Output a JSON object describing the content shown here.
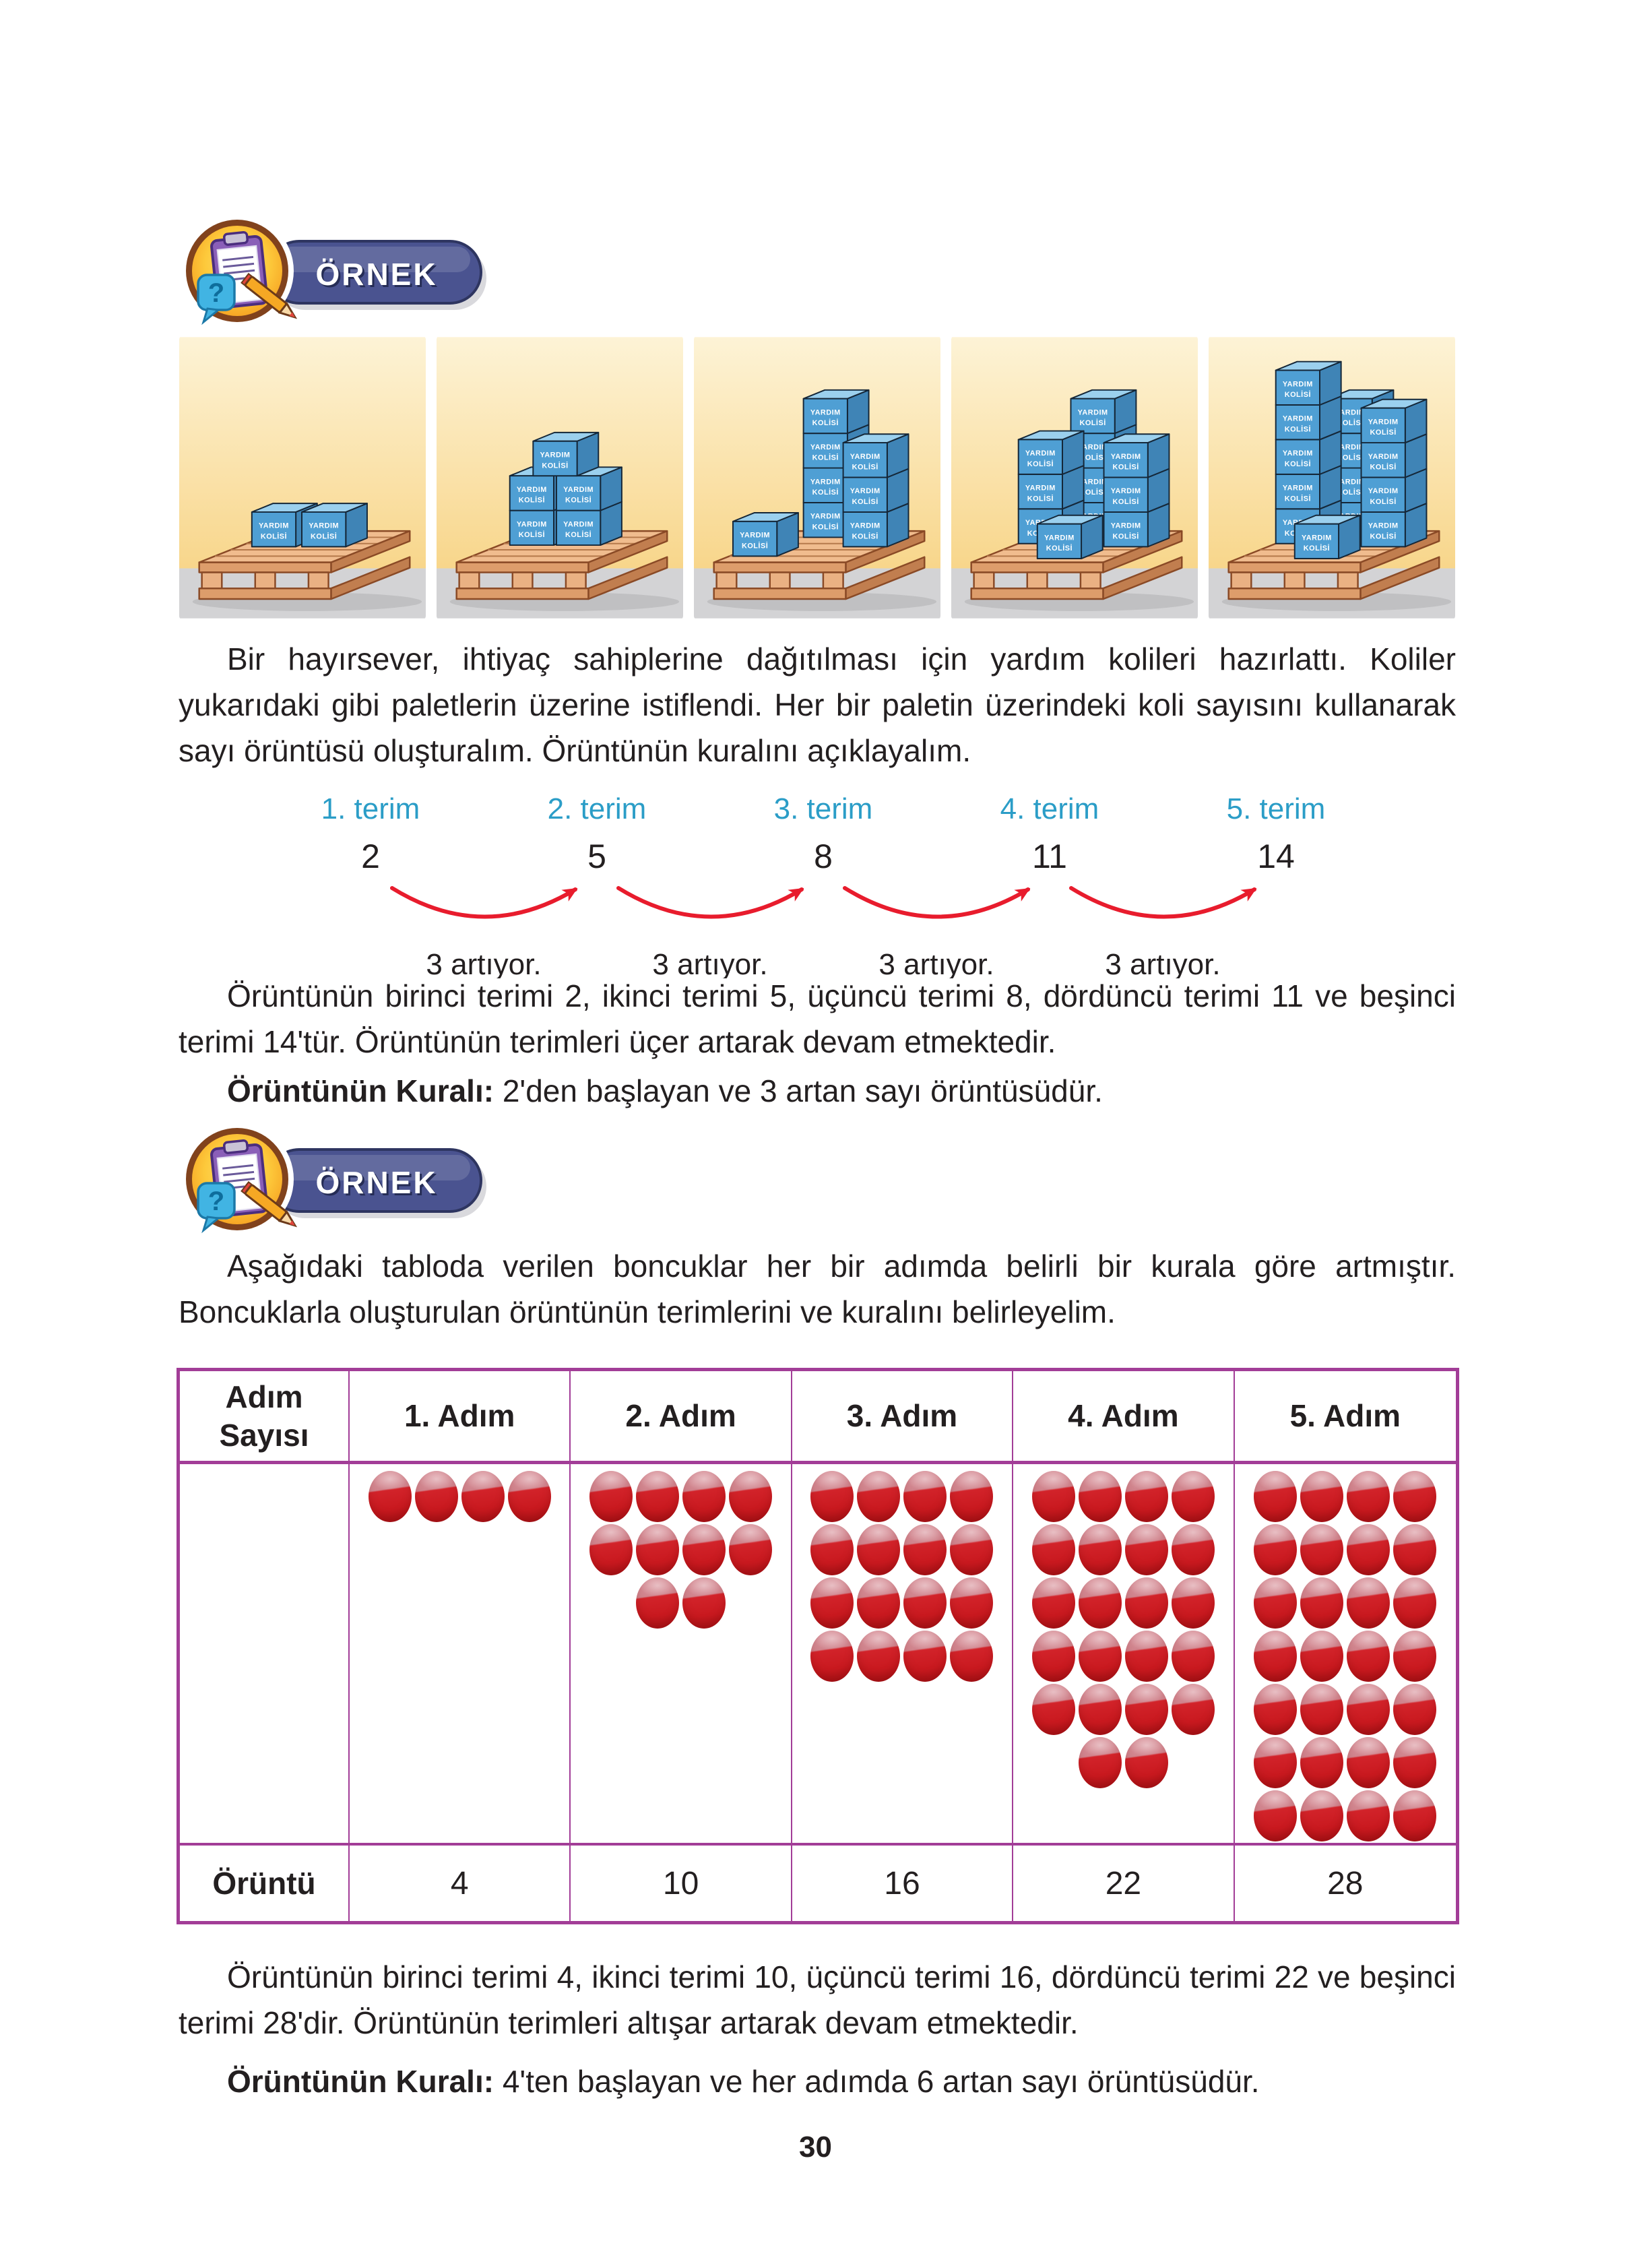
{
  "page": {
    "number": "30"
  },
  "colors": {
    "text": "#231f20",
    "term_label_cyan": "#2b9dc7",
    "arrow_red": "#e81c2d",
    "table_border_purple": "#a23d97",
    "badge_pill_blue": "#4a5390",
    "box_blue": "#4f9fd4",
    "bead_red": "#cc1a22",
    "pallet_wood": "#eab183"
  },
  "example1": {
    "badge_label": "ÖRNEK",
    "badge_icon": "clipboard-pencil-question-icon",
    "pallets": {
      "box_label_line1": "YARDIM",
      "box_label_line2": "KOLİSİ",
      "counts": [
        2,
        5,
        8,
        11,
        14
      ],
      "stacks": [
        [
          {
            "u": 20,
            "f": 0.5,
            "h": 1
          },
          {
            "u": 95,
            "f": 0.5,
            "h": 1
          }
        ],
        [
          {
            "u": 15,
            "f": 0.55,
            "h": 2
          },
          {
            "u": 85,
            "f": 0.55,
            "h": 2
          },
          {
            "u": 50,
            "f": 0.55,
            "h": 1,
            "lift": 2
          }
        ],
        [
          {
            "u": 40,
            "f": 0.8,
            "h": 4
          },
          {
            "u": 135,
            "f": 0.5,
            "h": 3
          },
          {
            "u": 5,
            "f": 0.2,
            "h": 1
          }
        ],
        [
          {
            "u": 55,
            "f": 0.8,
            "h": 4
          },
          {
            "u": 0,
            "f": 0.6,
            "h": 3
          },
          {
            "u": 140,
            "f": 0.5,
            "h": 3
          },
          {
            "u": 85,
            "f": 0.12,
            "h": 1
          }
        ],
        [
          {
            "u": 55,
            "f": 0.8,
            "h": 4
          },
          {
            "u": 0,
            "f": 0.6,
            "h": 5
          },
          {
            "u": 140,
            "f": 0.5,
            "h": 4
          },
          {
            "u": 85,
            "f": 0.12,
            "h": 1
          }
        ]
      ]
    },
    "intro_text": "Bir hayırsever, ihtiyaç sahiplerine dağıtılması için yardım kolileri hazırlattı. Koliler yukarıdaki gibi paletlerin üzerine istiflendi. Her bir paletin üzerindeki koli sayısını kullanarak sayı örüntüsü oluşturalım. Örüntünün kuralını açıklayalım.",
    "diagram": {
      "terms": [
        {
          "label": "1. terim",
          "value": "2"
        },
        {
          "label": "2. terim",
          "value": "5"
        },
        {
          "label": "3. terim",
          "value": "8"
        },
        {
          "label": "4. terim",
          "value": "11"
        },
        {
          "label": "5. terim",
          "value": "14"
        }
      ],
      "arrow_label": "3 artıyor."
    },
    "explanation_text": "Örüntünün birinci terimi 2, ikinci terimi 5, üçüncü terimi 8, dördüncü terimi 11 ve beşinci terimi 14'tür. Örüntünün terimleri üçer artarak devam etmektedir.",
    "rule_label": "Örüntünün Kuralı:",
    "rule_text": "2'den başlayan ve 3 artan sayı örüntüsüdür."
  },
  "example2": {
    "badge_label": "ÖRNEK",
    "intro_text": "Aşağıdaki tabloda verilen boncuklar her bir adımda belirli bir kurala göre artmıştır. Boncuklarla oluşturulan örüntünün terimlerini ve kuralını belirleyelim.",
    "table": {
      "header": [
        "Adım Sayısı",
        "1. Adım",
        "2. Adım",
        "3. Adım",
        "4. Adım",
        "5. Adım"
      ],
      "bead_rows": [
        [
          4
        ],
        [
          4,
          4,
          2
        ],
        [
          4,
          4,
          4,
          4
        ],
        [
          4,
          4,
          4,
          4,
          4,
          2
        ],
        [
          4,
          4,
          4,
          4,
          4,
          4,
          4
        ]
      ],
      "footer_label": "Örüntü",
      "footer_values": [
        "4",
        "10",
        "16",
        "22",
        "28"
      ]
    },
    "explanation_text": "Örüntünün birinci terimi 4, ikinci terimi 10, üçüncü terimi 16, dördüncü terimi 22 ve beşinci terimi 28'dir. Örüntünün terimleri altışar artarak devam etmektedir.",
    "rule_label": "Örüntünün Kuralı:",
    "rule_text": "4'ten başlayan ve her adımda 6 artan sayı örüntüsüdür."
  }
}
